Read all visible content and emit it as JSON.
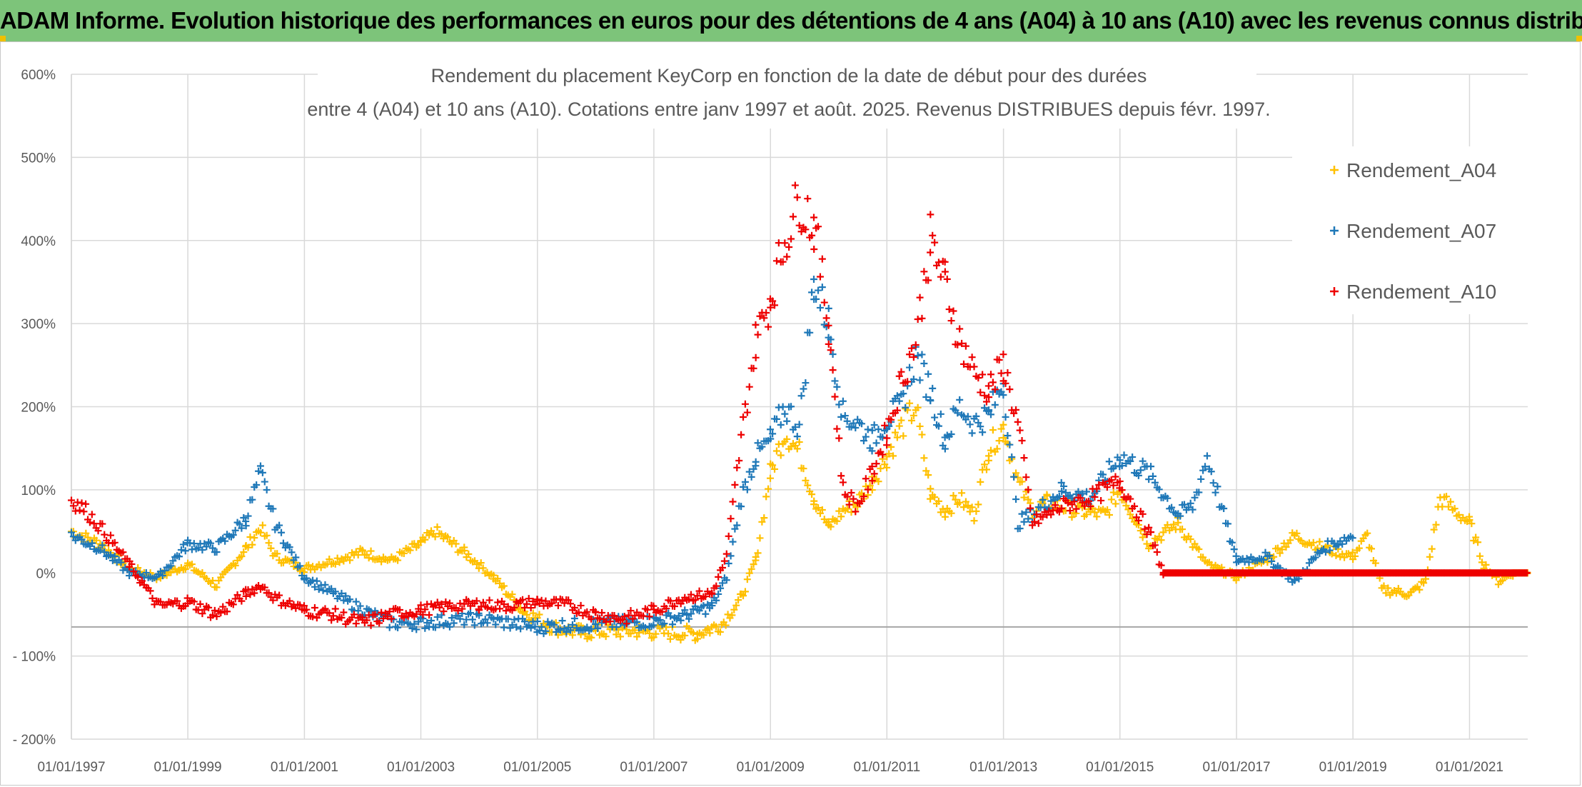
{
  "header": {
    "title": "ADAM Informe. Evolution historique des performances en euros pour des détentions de 4 ans (A04) à 10 ans (A10) avec les revenus connus distribués"
  },
  "colors": {
    "banner": "#7dc47a",
    "A04": "#ffc000",
    "A07": "#1f78b8",
    "A10": "#ee0000",
    "grid": "#d9d9d9"
  },
  "chart_data": {
    "type": "scatter",
    "title": "Rendement du placement KeyCorp en fonction de la date de début pour des durées",
    "subtitle": "entre 4 (A04) et 10 ans (A10). Cotations entre janv 1997 et août. 2025. Revenus DISTRIBUES depuis févr. 1997.",
    "xlabel": "",
    "ylabel": "",
    "x_tick_labels": [
      "01/01/1997",
      "01/01/1999",
      "01/01/2001",
      "01/01/2003",
      "01/01/2005",
      "01/01/2007",
      "01/01/2009",
      "01/01/2011",
      "01/01/2013",
      "01/01/2015",
      "01/01/2017",
      "01/01/2019",
      "01/01/2021"
    ],
    "y_tick_labels": [
      "- 200%",
      "- 100%",
      "0%",
      "100%",
      "200%",
      "300%",
      "400%",
      "500%",
      "600%"
    ],
    "xlim": [
      "1997-01-01",
      "2022-01-01"
    ],
    "ylim": [
      -200,
      600
    ],
    "marker": "+",
    "grid": true,
    "legend_position": "top-right",
    "series": [
      {
        "name": "Rendement_A04",
        "color": "#ffc000",
        "x": [
          "1997-01-01",
          "1997-07-01",
          "1998-01-01",
          "1998-07-01",
          "1999-01-01",
          "1999-07-01",
          "2000-01-01",
          "2000-04-01",
          "2000-07-01",
          "2001-01-01",
          "2001-07-01",
          "2002-01-01",
          "2002-07-01",
          "2003-01-01",
          "2003-04-01",
          "2003-10-01",
          "2004-04-01",
          "2004-10-01",
          "2005-04-01",
          "2005-10-01",
          "2006-04-01",
          "2006-10-01",
          "2007-04-01",
          "2007-10-01",
          "2008-03-01",
          "2008-07-01",
          "2008-10-01",
          "2009-01-01",
          "2009-04-01",
          "2009-07-01",
          "2009-10-01",
          "2010-01-01",
          "2010-04-01",
          "2010-07-01",
          "2010-10-01",
          "2011-01-01",
          "2011-04-01",
          "2011-07-01",
          "2011-10-01",
          "2012-01-01",
          "2012-04-01",
          "2012-07-01",
          "2012-10-01",
          "2013-01-01",
          "2013-04-01",
          "2013-07-01",
          "2013-10-01",
          "2014-04-01",
          "2014-10-01",
          "2015-01-01",
          "2015-07-01",
          "2016-01-01",
          "2016-07-01",
          "2017-01-01",
          "2017-07-01",
          "2018-01-01",
          "2018-07-01",
          "2019-01-01",
          "2019-04-01",
          "2019-07-01",
          "2020-01-01",
          "2020-04-01",
          "2020-07-01",
          "2021-01-01",
          "2021-04-01",
          "2021-07-01",
          "2021-10-01",
          "2022-01-01"
        ],
        "y": [
          50,
          35,
          5,
          -5,
          10,
          -15,
          30,
          55,
          20,
          5,
          15,
          25,
          15,
          35,
          50,
          25,
          -5,
          -45,
          -65,
          -72,
          -70,
          -70,
          -72,
          -73,
          -62,
          -30,
          15,
          120,
          170,
          145,
          90,
          55,
          75,
          85,
          110,
          140,
          175,
          200,
          95,
          75,
          90,
          70,
          150,
          175,
          110,
          75,
          85,
          75,
          70,
          100,
          35,
          60,
          10,
          -5,
          15,
          45,
          30,
          20,
          45,
          -20,
          -25,
          -10,
          90,
          60,
          10,
          -10,
          0,
          0
        ]
      },
      {
        "name": "Rendement_A07",
        "color": "#1f78b8",
        "x": [
          "1997-01-01",
          "1997-07-01",
          "1998-01-01",
          "1998-07-01",
          "1999-01-01",
          "1999-07-01",
          "2000-01-01",
          "2000-04-01",
          "2000-07-01",
          "2001-01-01",
          "2001-07-01",
          "2002-01-01",
          "2002-07-01",
          "2003-01-01",
          "2003-07-01",
          "2004-01-01",
          "2004-07-01",
          "2005-01-01",
          "2005-07-01",
          "2006-01-01",
          "2006-07-01",
          "2007-01-01",
          "2007-07-01",
          "2008-01-01",
          "2008-04-01",
          "2008-07-01",
          "2008-10-01",
          "2009-01-01",
          "2009-04-01",
          "2009-07-01",
          "2009-10-01",
          "2010-01-01",
          "2010-04-01",
          "2010-07-01",
          "2010-10-01",
          "2011-01-01",
          "2011-04-01",
          "2011-07-01",
          "2011-10-01",
          "2012-01-01",
          "2012-04-01",
          "2012-07-01",
          "2012-10-01",
          "2013-01-01",
          "2013-04-01",
          "2013-07-01",
          "2014-01-01",
          "2014-07-01",
          "2015-01-01",
          "2015-07-01",
          "2016-01-01",
          "2016-04-01",
          "2016-07-01",
          "2017-01-01",
          "2017-07-01",
          "2018-01-01",
          "2018-07-01",
          "2019-01-01"
        ],
        "y": [
          45,
          30,
          0,
          -5,
          35,
          30,
          65,
          120,
          60,
          -5,
          -25,
          -45,
          -60,
          -60,
          -57,
          -55,
          -60,
          -65,
          -63,
          -62,
          -60,
          -58,
          -52,
          -40,
          -5,
          90,
          140,
          160,
          200,
          175,
          350,
          300,
          190,
          180,
          160,
          185,
          200,
          260,
          220,
          160,
          200,
          180,
          190,
          230,
          60,
          70,
          100,
          90,
          140,
          120,
          70,
          80,
          140,
          15,
          20,
          -10,
          30,
          45
        ]
      },
      {
        "name": "Rendement_A10",
        "color": "#ee0000",
        "x": [
          "1997-01-01",
          "1997-04-01",
          "1997-07-01",
          "1998-01-01",
          "1998-07-01",
          "1999-01-01",
          "1999-07-01",
          "2000-01-01",
          "2000-04-01",
          "2000-07-01",
          "2001-01-01",
          "2001-07-01",
          "2002-01-01",
          "2002-07-01",
          "2003-01-01",
          "2003-07-01",
          "2004-01-01",
          "2004-07-01",
          "2005-01-01",
          "2005-07-01",
          "2006-01-01",
          "2006-07-01",
          "2007-01-01",
          "2007-07-01",
          "2008-01-01",
          "2008-04-01",
          "2008-07-01",
          "2008-10-01",
          "2009-01-01",
          "2009-04-01",
          "2009-07-01",
          "2009-10-01",
          "2010-01-01",
          "2010-04-01",
          "2010-07-01",
          "2010-10-01",
          "2011-01-01",
          "2011-04-01",
          "2011-07-01",
          "2011-10-01",
          "2012-01-01",
          "2012-04-01",
          "2012-07-01",
          "2012-10-01",
          "2013-01-01",
          "2013-04-01",
          "2013-07-01",
          "2014-01-01",
          "2014-07-01",
          "2015-01-01",
          "2015-07-01",
          "2015-10-01",
          "2017-01-01",
          "2019-01-01",
          "2022-01-01"
        ],
        "y": [
          88,
          75,
          55,
          10,
          -40,
          -35,
          -50,
          -25,
          -15,
          -30,
          -45,
          -50,
          -60,
          -50,
          -45,
          -40,
          -38,
          -40,
          -35,
          -38,
          -50,
          -55,
          -45,
          -30,
          -25,
          20,
          160,
          280,
          330,
          400,
          450,
          420,
          300,
          100,
          80,
          120,
          170,
          230,
          280,
          400,
          350,
          280,
          240,
          220,
          250,
          180,
          60,
          80,
          90,
          110,
          50,
          0,
          0,
          0,
          0
        ]
      }
    ]
  }
}
